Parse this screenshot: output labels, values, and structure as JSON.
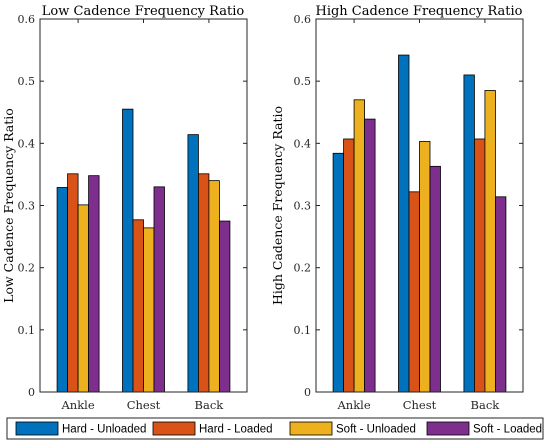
{
  "chart_data": [
    {
      "type": "bar",
      "title": "Low Cadence Frequency Ratio",
      "ylabel": "Low Cadence Frequency Ratio",
      "xlabel": "",
      "categories": [
        "Ankle",
        "Chest",
        "Back"
      ],
      "ylim": [
        0,
        0.6
      ],
      "yticks": [
        "0",
        "0.1",
        "0.2",
        "0.3",
        "0.4",
        "0.5",
        "0.6"
      ],
      "series": [
        {
          "name": "Hard - Unloaded",
          "values": [
            0.329,
            0.455,
            0.414
          ]
        },
        {
          "name": "Hard - Loaded",
          "values": [
            0.351,
            0.277,
            0.351
          ]
        },
        {
          "name": "Soft - Unloaded",
          "values": [
            0.301,
            0.264,
            0.34
          ]
        },
        {
          "name": "Soft - Loaded",
          "values": [
            0.348,
            0.33,
            0.275
          ]
        }
      ]
    },
    {
      "type": "bar",
      "title": "High Cadence Frequency Ratio",
      "ylabel": "High Cadence Frequency Ratio",
      "xlabel": "",
      "categories": [
        "Ankle",
        "Chest",
        "Back"
      ],
      "ylim": [
        0,
        0.6
      ],
      "yticks": [
        "0",
        "0.1",
        "0.2",
        "0.3",
        "0.4",
        "0.5",
        "0.6"
      ],
      "series": [
        {
          "name": "Hard - Unloaded",
          "values": [
            0.384,
            0.542,
            0.51
          ]
        },
        {
          "name": "Hard - Loaded",
          "values": [
            0.407,
            0.322,
            0.407
          ]
        },
        {
          "name": "Soft - Unloaded",
          "values": [
            0.47,
            0.403,
            0.485
          ]
        },
        {
          "name": "Soft - Loaded",
          "values": [
            0.439,
            0.363,
            0.314
          ]
        }
      ]
    }
  ],
  "legend": {
    "position": "bottom",
    "items": [
      "Hard - Unloaded",
      "Hard - Loaded",
      "Soft - Unloaded",
      "Soft - Loaded"
    ]
  },
  "colors": [
    "#0072BD",
    "#D95319",
    "#EDB120",
    "#7E2F8E"
  ]
}
